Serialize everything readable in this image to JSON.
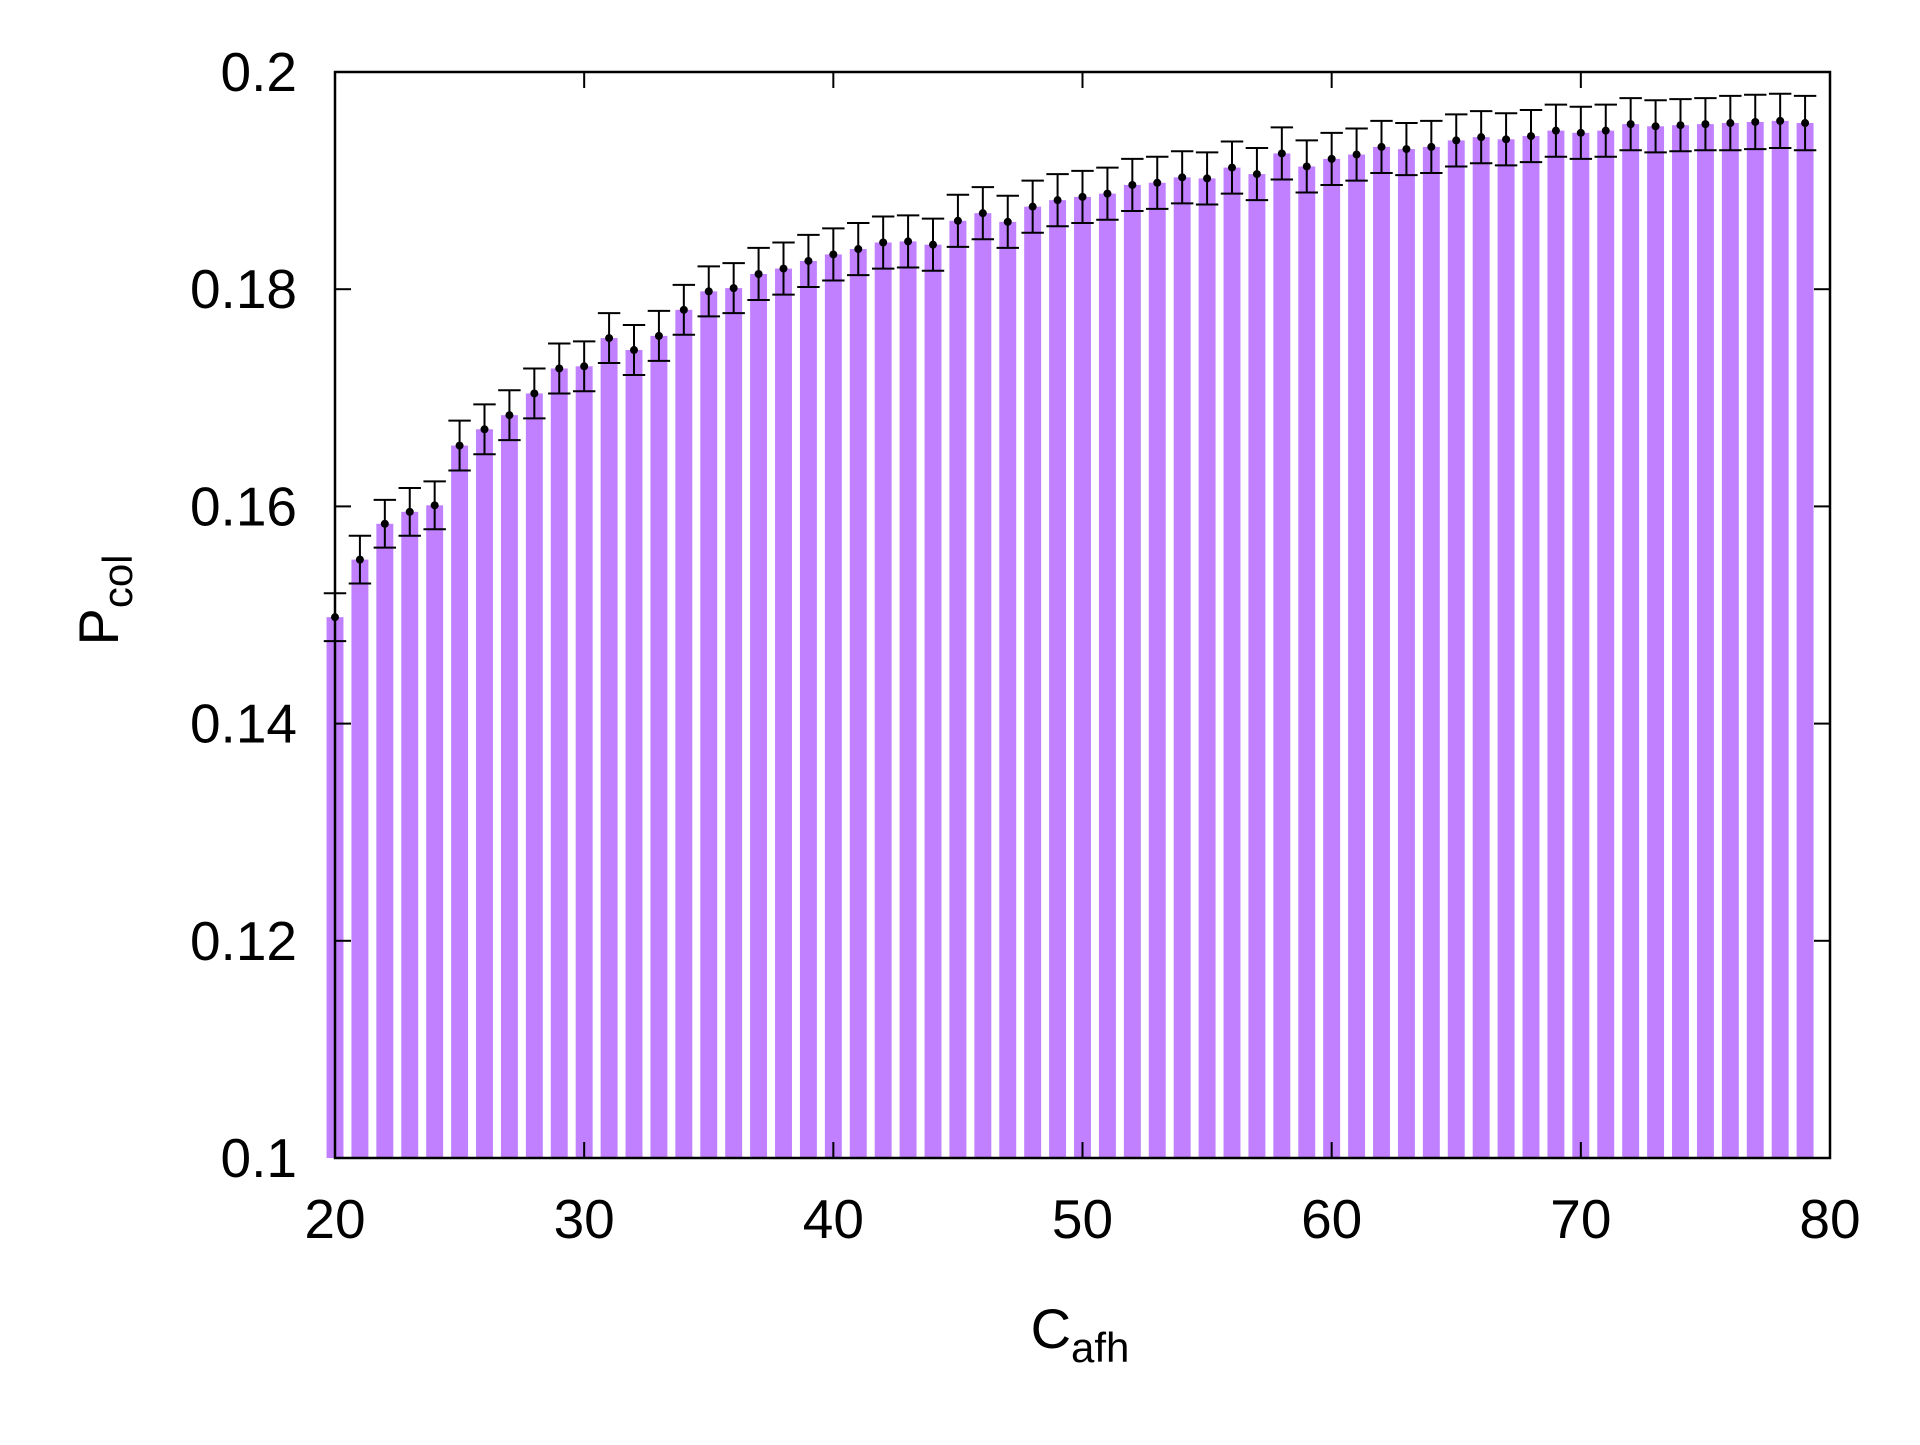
{
  "colors": {
    "bar": "#c080ff",
    "marker": "#000000",
    "axis": "#000000",
    "background": "#ffffff"
  },
  "chart_data": {
    "type": "bar",
    "xlabel": {
      "main": "C",
      "sub": "afh"
    },
    "ylabel": {
      "main": "P",
      "sub": "col"
    },
    "xlim": [
      20,
      80
    ],
    "ylim": [
      0.1,
      0.2
    ],
    "x_ticks": [
      "20",
      "30",
      "40",
      "50",
      "60",
      "70",
      "80"
    ],
    "y_ticks": [
      "0.1",
      "0.12",
      "0.14",
      "0.16",
      "0.18",
      "0.2"
    ],
    "grid": false,
    "legend": "none",
    "error_bars": true,
    "x": [
      20,
      21,
      22,
      23,
      24,
      25,
      26,
      27,
      28,
      29,
      30,
      31,
      32,
      33,
      34,
      35,
      36,
      37,
      38,
      39,
      40,
      41,
      42,
      43,
      44,
      45,
      46,
      47,
      48,
      49,
      50,
      51,
      52,
      53,
      54,
      55,
      56,
      57,
      58,
      59,
      60,
      61,
      62,
      63,
      64,
      65,
      66,
      67,
      68,
      69,
      70,
      71,
      72,
      73,
      74,
      75,
      76,
      77,
      78,
      79
    ],
    "values": [
      0.1498,
      0.1551,
      0.1584,
      0.1595,
      0.1601,
      0.1656,
      0.1671,
      0.1684,
      0.1704,
      0.1727,
      0.1729,
      0.1755,
      0.1744,
      0.1757,
      0.1781,
      0.1798,
      0.1801,
      0.1814,
      0.1819,
      0.1826,
      0.1832,
      0.1837,
      0.1843,
      0.1844,
      0.1841,
      0.1863,
      0.187,
      0.1862,
      0.1876,
      0.1882,
      0.1885,
      0.1888,
      0.1896,
      0.1898,
      0.1903,
      0.1902,
      0.1912,
      0.1906,
      0.1925,
      0.1913,
      0.192,
      0.1924,
      0.1931,
      0.1929,
      0.1931,
      0.1937,
      0.194,
      0.1938,
      0.1941,
      0.1946,
      0.1944,
      0.1946,
      0.1952,
      0.195,
      0.1951,
      0.1952,
      0.1953,
      0.1954,
      0.1955,
      0.1953
    ],
    "errors": [
      0.0022,
      0.0022,
      0.0022,
      0.0022,
      0.0022,
      0.0023,
      0.0023,
      0.0023,
      0.0023,
      0.0023,
      0.0023,
      0.0023,
      0.0023,
      0.0023,
      0.0023,
      0.0023,
      0.0023,
      0.0024,
      0.0024,
      0.0024,
      0.0024,
      0.0024,
      0.0024,
      0.0024,
      0.0024,
      0.0024,
      0.0024,
      0.0024,
      0.0024,
      0.0024,
      0.0024,
      0.0024,
      0.0024,
      0.0024,
      0.0024,
      0.0024,
      0.0024,
      0.0024,
      0.0024,
      0.0024,
      0.0024,
      0.0024,
      0.0024,
      0.0024,
      0.0024,
      0.0024,
      0.0024,
      0.0024,
      0.0024,
      0.0024,
      0.0024,
      0.0024,
      0.0024,
      0.0024,
      0.0024,
      0.0024,
      0.0025,
      0.0025,
      0.0025,
      0.0025
    ]
  }
}
